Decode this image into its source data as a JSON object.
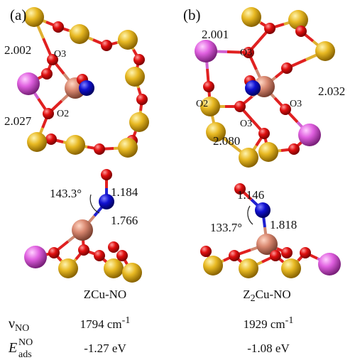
{
  "panels": [
    {
      "label": "(a)",
      "top_labels": [
        "2.002",
        "O3",
        "2.027",
        "O2"
      ],
      "bottom_labels": [
        "143.3°",
        "1.184",
        "1.766"
      ],
      "name": {
        "text": "ZCu-NO"
      },
      "frequency": {
        "text": "1794 cm",
        "sup": "-1"
      },
      "adsorption_energy": "-1.27 eV"
    },
    {
      "label": "(b)",
      "top_labels": [
        "2.001",
        "O3",
        "O2",
        "O3",
        "2.032",
        "O3",
        "2.080"
      ],
      "bottom_labels": [
        "1.146",
        "133.7°",
        "1.818"
      ],
      "name": {
        "base": "Z",
        "sub": "2",
        "rest": "Cu-NO"
      },
      "frequency": {
        "text": "1929 cm",
        "sup": "-1"
      },
      "adsorption_energy": "-1.08 eV"
    }
  ],
  "row_labels": {
    "frequency": {
      "symbol": "ν",
      "sub": "NO"
    },
    "energy": {
      "symbol": "E",
      "sup": "NO",
      "sub": "ads"
    }
  }
}
